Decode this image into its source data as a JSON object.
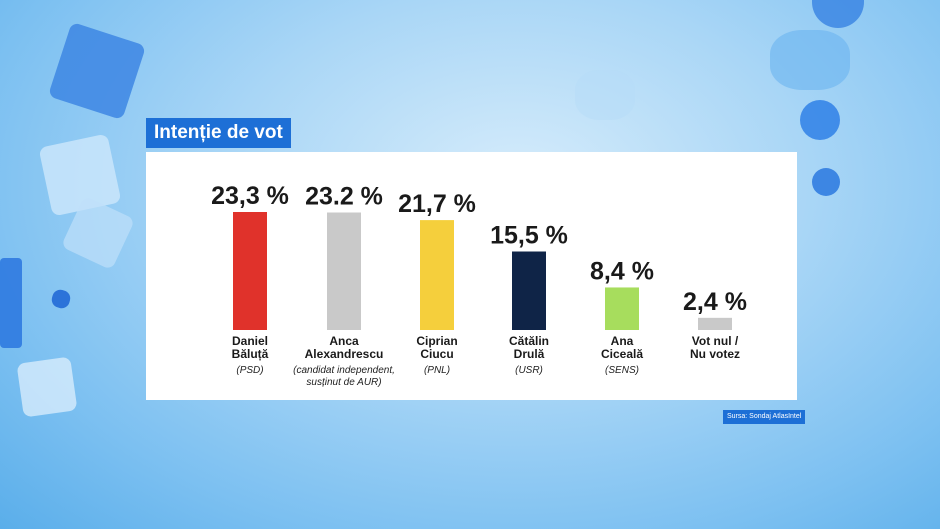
{
  "header": {
    "title": "Intenție de vot"
  },
  "footer": {
    "source": "Sursa: Sondaj AtlasIntel"
  },
  "chart_data": {
    "type": "bar",
    "title": "Intenție de vot",
    "categories": [
      "Daniel Băluță",
      "Anca Alexandrescu",
      "Ciprian Ciucu",
      "Cătălin Drulă",
      "Ana Ciceală",
      "Vot nul / Nu votez"
    ],
    "values": [
      23.3,
      23.2,
      21.7,
      15.5,
      8.4,
      2.4
    ],
    "value_labels": [
      "23,3 %",
      "23.2 %",
      "21,7 %",
      "15,5 %",
      "8,4 %",
      "2,4 %"
    ],
    "name_lines": [
      [
        "Daniel",
        "Băluță"
      ],
      [
        "Anca",
        "Alexandrescu"
      ],
      [
        "Ciprian",
        "Ciucu"
      ],
      [
        "Cătălin",
        "Drulă"
      ],
      [
        "Ana",
        "Ciceală"
      ],
      [
        "Vot nul /",
        "Nu votez"
      ]
    ],
    "party_lines": [
      [
        "(PSD)"
      ],
      [
        "(candidat independent,",
        "susținut de AUR)"
      ],
      [
        "(PNL)"
      ],
      [
        "(USR)"
      ],
      [
        "(SENS)"
      ],
      []
    ],
    "colors": [
      "#e0322b",
      "#c9c9c9",
      "#f5cf3c",
      "#0f2447",
      "#a7dd5d",
      "#c9c9c9"
    ],
    "ylim": [
      0,
      23.3
    ]
  }
}
